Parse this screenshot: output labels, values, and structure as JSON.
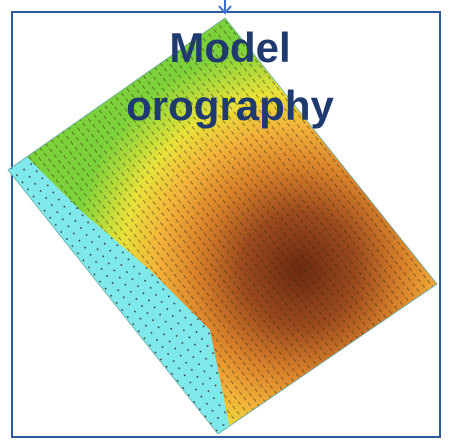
{
  "title": {
    "line1": "Model",
    "line2": "orography"
  }
}
